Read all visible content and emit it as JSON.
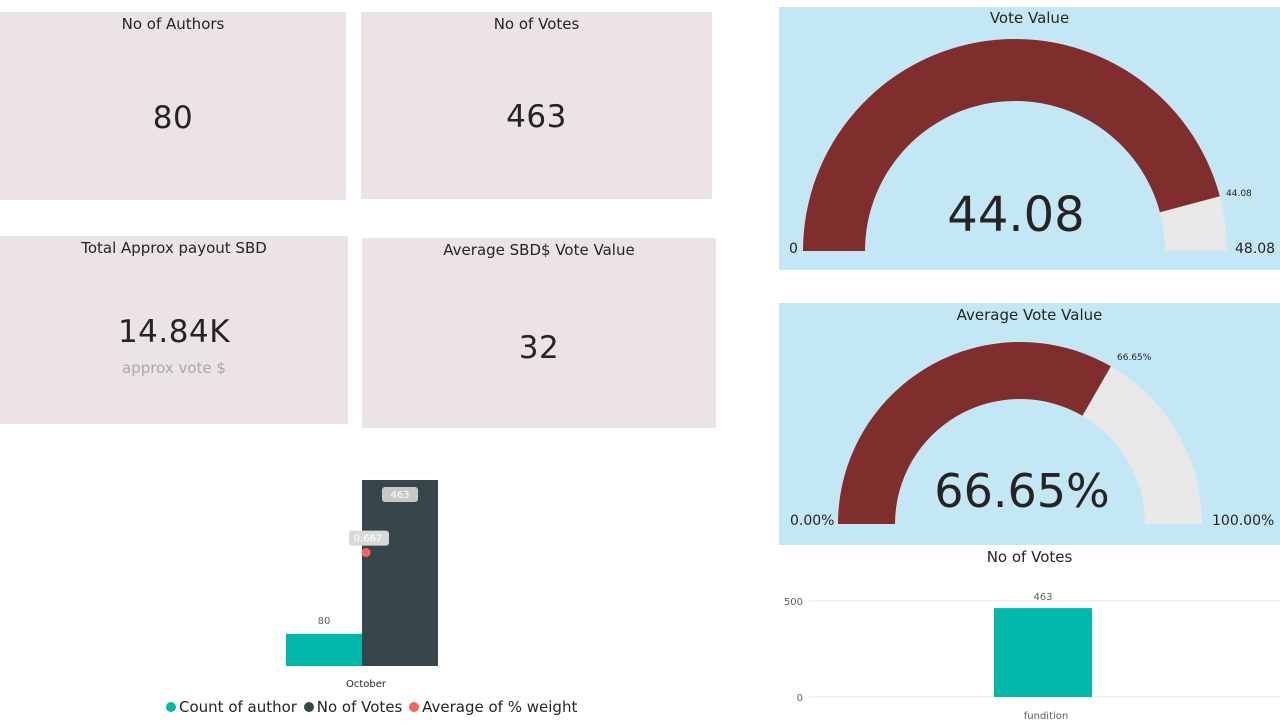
{
  "cards": [
    {
      "title": "No of Authors",
      "value": "80"
    },
    {
      "title": "No of Votes",
      "value": "463"
    },
    {
      "title": "Total Approx payout SBD",
      "value": "14.84K",
      "sub": "approx vote $"
    },
    {
      "title": "Average SBD$ Vote Value",
      "value": "32"
    }
  ],
  "gauge_vote_value": {
    "title": "Vote Value",
    "value": 44.08,
    "max": 48.08,
    "value_label": "44.08",
    "min_label": "0",
    "max_label": "48.08",
    "marker_label": "44.08",
    "fill_color": "#7f2d2d",
    "track_color": "#e8e8e8"
  },
  "gauge_avg_vote": {
    "title": "Average Vote Value",
    "value": 0.6665,
    "max": 1,
    "value_label": "66.65%",
    "min_label": "0.00%",
    "max_label": "100.00%",
    "marker_label": "66.65%",
    "fill_color": "#7f2d2d",
    "track_color": "#e8e8e8"
  },
  "chart_data": [
    {
      "type": "bar",
      "categories": [
        "October"
      ],
      "series": [
        {
          "name": "Count of author",
          "values": [
            80
          ],
          "color": "#01b8aa",
          "labels": [
            "80"
          ]
        },
        {
          "name": "No of Votes",
          "values": [
            463
          ],
          "color": "#374649",
          "labels": [
            "463"
          ]
        },
        {
          "name": "Average of % weight",
          "values": [
            0.667
          ],
          "color": "#fd625e",
          "labels": [
            "0.667"
          ],
          "render": "marker"
        }
      ],
      "legend": "bottom"
    },
    {
      "type": "bar",
      "title": "No of Votes",
      "categories": [
        "fundition"
      ],
      "values": [
        463
      ],
      "value_labels": [
        "463"
      ],
      "ylim": [
        0,
        500
      ],
      "yticks": [
        "0",
        "500"
      ],
      "color": "#01b8aa",
      "grid": true
    }
  ]
}
